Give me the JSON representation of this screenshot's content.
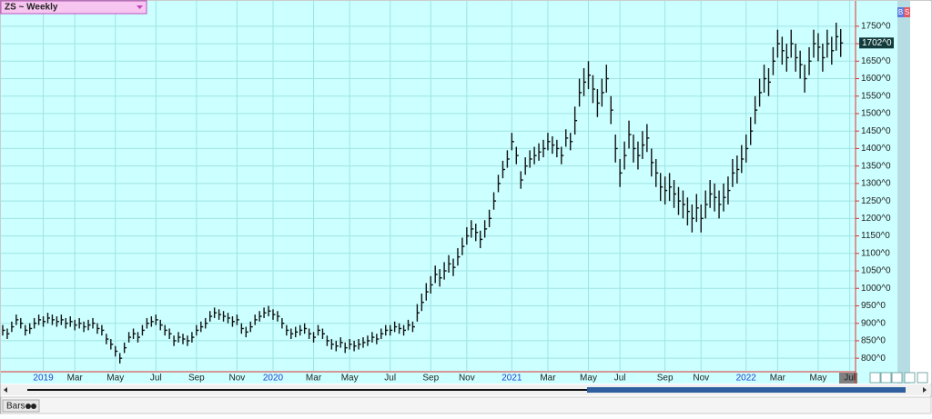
{
  "chart_data": {
    "type": "ohlc",
    "title": "ZS ~ Weekly",
    "color": "#111111",
    "grid": true,
    "categories": [
      null,
      null,
      null,
      null,
      null,
      null,
      null,
      null,
      null,
      "2019",
      null,
      null,
      null,
      null,
      null,
      null,
      "Mar",
      null,
      null,
      null,
      null,
      null,
      null,
      null,
      null,
      "May",
      null,
      null,
      null,
      null,
      null,
      null,
      null,
      null,
      "Jul",
      null,
      null,
      null,
      null,
      null,
      null,
      null,
      null,
      "Sep",
      null,
      null,
      null,
      null,
      null,
      null,
      null,
      null,
      "Nov",
      null,
      null,
      null,
      null,
      null,
      null,
      null,
      "2020",
      null,
      null,
      null,
      null,
      null,
      null,
      null,
      null,
      "Mar",
      null,
      null,
      null,
      null,
      null,
      null,
      null,
      "May",
      null,
      null,
      null,
      null,
      null,
      null,
      null,
      null,
      "Jul",
      null,
      null,
      null,
      null,
      null,
      null,
      null,
      null,
      "Sep",
      null,
      null,
      null,
      null,
      null,
      null,
      null,
      "Nov",
      null,
      null,
      null,
      null,
      null,
      null,
      null,
      null,
      null,
      "2021",
      null,
      null,
      null,
      null,
      null,
      null,
      null,
      "Mar",
      null,
      null,
      null,
      null,
      null,
      null,
      null,
      null,
      "May",
      null,
      null,
      null,
      null,
      null,
      null,
      "Jul",
      null,
      null,
      null,
      null,
      null,
      null,
      null,
      null,
      null,
      "Sep",
      null,
      null,
      null,
      null,
      null,
      null,
      null,
      "Nov",
      null,
      null,
      null,
      null,
      null,
      null,
      null,
      null,
      null,
      "2022",
      null,
      null,
      null,
      null,
      null,
      null,
      "Mar",
      null,
      null,
      null,
      null,
      null,
      null,
      null,
      null,
      "May",
      null,
      null,
      null,
      null,
      null,
      null,
      "Jul"
    ],
    "high": [
      895,
      885,
      905,
      925,
      915,
      895,
      900,
      915,
      925,
      920,
      930,
      925,
      920,
      925,
      915,
      920,
      910,
      915,
      905,
      910,
      915,
      900,
      895,
      870,
      855,
      835,
      815,
      845,
      875,
      885,
      875,
      895,
      915,
      920,
      925,
      910,
      895,
      885,
      865,
      875,
      870,
      865,
      875,
      895,
      905,
      915,
      935,
      945,
      940,
      935,
      930,
      920,
      925,
      900,
      890,
      905,
      925,
      935,
      945,
      950,
      940,
      935,
      915,
      895,
      885,
      890,
      895,
      900,
      885,
      875,
      895,
      885,
      865,
      855,
      850,
      860,
      845,
      855,
      850,
      855,
      860,
      865,
      875,
      870,
      885,
      895,
      895,
      905,
      900,
      895,
      910,
      905,
      955,
      985,
      1015,
      1035,
      1065,
      1055,
      1075,
      1095,
      1085,
      1115,
      1145,
      1175,
      1195,
      1185,
      1165,
      1195,
      1225,
      1275,
      1325,
      1365,
      1395,
      1445,
      1405,
      1335,
      1375,
      1395,
      1405,
      1415,
      1425,
      1445,
      1435,
      1425,
      1405,
      1455,
      1445,
      1520,
      1600,
      1630,
      1650,
      1610,
      1570,
      1600,
      1640,
      1550,
      1440,
      1370,
      1420,
      1480,
      1440,
      1420,
      1450,
      1470,
      1400,
      1370,
      1330,
      1320,
      1330,
      1310,
      1290,
      1280,
      1260,
      1240,
      1270,
      1240,
      1280,
      1310,
      1300,
      1280,
      1300,
      1320,
      1370,
      1380,
      1410,
      1440,
      1490,
      1550,
      1600,
      1640,
      1630,
      1690,
      1740,
      1720,
      1700,
      1740,
      1700,
      1680,
      1640,
      1690,
      1740,
      1730,
      1700,
      1740,
      1720,
      1760,
      1742,
      null,
      null
    ],
    "low": [
      865,
      855,
      875,
      895,
      885,
      865,
      870,
      885,
      895,
      890,
      900,
      895,
      890,
      895,
      885,
      890,
      880,
      885,
      875,
      880,
      885,
      870,
      865,
      840,
      825,
      805,
      785,
      815,
      845,
      855,
      845,
      865,
      885,
      890,
      895,
      880,
      865,
      855,
      835,
      845,
      840,
      835,
      845,
      865,
      875,
      885,
      905,
      915,
      910,
      905,
      900,
      890,
      895,
      870,
      860,
      875,
      895,
      905,
      915,
      920,
      910,
      905,
      885,
      865,
      855,
      860,
      865,
      870,
      855,
      845,
      865,
      855,
      835,
      825,
      820,
      830,
      815,
      825,
      820,
      825,
      830,
      835,
      845,
      840,
      855,
      865,
      865,
      875,
      870,
      865,
      880,
      875,
      905,
      935,
      965,
      985,
      1015,
      1005,
      1025,
      1045,
      1035,
      1065,
      1095,
      1125,
      1145,
      1135,
      1115,
      1145,
      1175,
      1225,
      1275,
      1315,
      1345,
      1395,
      1355,
      1285,
      1325,
      1345,
      1355,
      1365,
      1375,
      1395,
      1385,
      1375,
      1355,
      1405,
      1395,
      1440,
      1520,
      1550,
      1570,
      1530,
      1490,
      1520,
      1560,
      1470,
      1360,
      1290,
      1340,
      1400,
      1360,
      1340,
      1370,
      1390,
      1320,
      1290,
      1250,
      1240,
      1250,
      1230,
      1210,
      1200,
      1180,
      1160,
      1190,
      1160,
      1200,
      1230,
      1220,
      1200,
      1220,
      1240,
      1290,
      1300,
      1330,
      1360,
      1410,
      1470,
      1520,
      1560,
      1550,
      1610,
      1660,
      1640,
      1620,
      1660,
      1620,
      1600,
      1560,
      1610,
      1660,
      1650,
      1620,
      1660,
      1640,
      1680,
      1662,
      null,
      null
    ],
    "close": [
      880,
      870,
      890,
      910,
      900,
      880,
      885,
      900,
      910,
      905,
      915,
      910,
      905,
      910,
      900,
      905,
      895,
      900,
      890,
      895,
      900,
      885,
      880,
      855,
      840,
      820,
      800,
      830,
      860,
      870,
      860,
      880,
      900,
      905,
      910,
      895,
      880,
      870,
      850,
      860,
      855,
      850,
      860,
      880,
      890,
      900,
      920,
      930,
      925,
      920,
      915,
      905,
      910,
      885,
      875,
      890,
      910,
      920,
      930,
      935,
      925,
      920,
      900,
      880,
      870,
      875,
      880,
      885,
      870,
      860,
      880,
      870,
      850,
      840,
      835,
      845,
      830,
      840,
      835,
      840,
      845,
      850,
      860,
      855,
      870,
      880,
      880,
      890,
      885,
      880,
      895,
      890,
      930,
      960,
      990,
      1010,
      1040,
      1030,
      1050,
      1070,
      1060,
      1090,
      1120,
      1150,
      1170,
      1160,
      1140,
      1170,
      1200,
      1250,
      1300,
      1340,
      1370,
      1420,
      1380,
      1310,
      1350,
      1370,
      1380,
      1390,
      1400,
      1420,
      1410,
      1400,
      1380,
      1430,
      1420,
      1480,
      1560,
      1590,
      1610,
      1570,
      1530,
      1560,
      1600,
      1510,
      1400,
      1330,
      1380,
      1440,
      1400,
      1380,
      1410,
      1430,
      1360,
      1330,
      1290,
      1280,
      1290,
      1270,
      1250,
      1240,
      1220,
      1200,
      1230,
      1200,
      1240,
      1270,
      1260,
      1240,
      1260,
      1280,
      1330,
      1340,
      1370,
      1400,
      1450,
      1510,
      1560,
      1600,
      1590,
      1650,
      1700,
      1680,
      1660,
      1700,
      1660,
      1640,
      1600,
      1650,
      1700,
      1690,
      1660,
      1700,
      1680,
      1720,
      1702,
      null,
      null
    ],
    "ylim": [
      764,
      1825
    ],
    "yticks": [
      {
        "value": 800,
        "label": "800^0"
      },
      {
        "value": 850,
        "label": "850^0"
      },
      {
        "value": 900,
        "label": "900^0"
      },
      {
        "value": 950,
        "label": "950^0"
      },
      {
        "value": 1000,
        "label": "1000^0"
      },
      {
        "value": 1050,
        "label": "1050^0"
      },
      {
        "value": 1100,
        "label": "1100^0"
      },
      {
        "value": 1150,
        "label": "1150^0"
      },
      {
        "value": 1200,
        "label": "1200^0"
      },
      {
        "value": 1250,
        "label": "1250^0"
      },
      {
        "value": 1300,
        "label": "1300^0"
      },
      {
        "value": 1350,
        "label": "1350^0"
      },
      {
        "value": 1400,
        "label": "1400^0"
      },
      {
        "value": 1450,
        "label": "1450^0"
      },
      {
        "value": 1500,
        "label": "1500^0"
      },
      {
        "value": 1550,
        "label": "1550^0"
      },
      {
        "value": 1600,
        "label": "1600^0"
      },
      {
        "value": 1650,
        "label": "1650^0"
      },
      {
        "value": 1700,
        "label": "1700^0"
      },
      {
        "value": 1750,
        "label": "1750^0"
      }
    ],
    "last_label": "1702^0"
  },
  "ui": {
    "bottom_label": "Bars",
    "buttons": [
      "B",
      "S"
    ]
  }
}
